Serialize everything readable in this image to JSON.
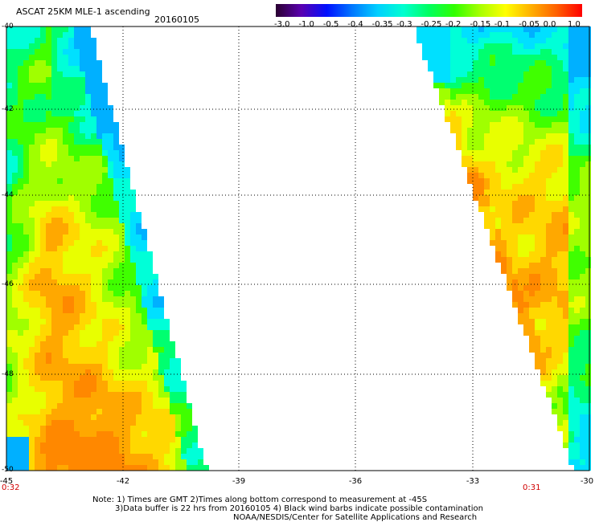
{
  "header": {
    "title": "ASCAT 25KM MLE-1 ascending",
    "date": "20160105"
  },
  "colorbar": {
    "labels": [
      "-3.0",
      "-1.0",
      "-0.5",
      "-0.4",
      "-0.35",
      "-0.3",
      "-0.25",
      "-0.2",
      "-0.15",
      "-0.1",
      "-0.05",
      "0.0",
      "1.0"
    ],
    "colors": [
      "#2a0030",
      "#5a00b0",
      "#0010ff",
      "#0078ff",
      "#00d0ff",
      "#00ffd0",
      "#00ff60",
      "#30ff00",
      "#a8ff00",
      "#ffff00",
      "#ffb000",
      "#ff6000",
      "#ff0000"
    ]
  },
  "axes": {
    "lat_labels": [
      "-40",
      "-42",
      "-44",
      "-46",
      "-48",
      "-50"
    ],
    "lon_labels": [
      "-45",
      "-42",
      "-39",
      "-36",
      "-33",
      "-30"
    ]
  },
  "pass_times": {
    "left": "0:32",
    "right": "0:31"
  },
  "notes": {
    "line1": "Note: 1) Times are GMT 2)Times along bottom correspond to measurement at -45S",
    "line2": "3)Data buffer is 22 hrs from 20160105 4) Black wind barbs indicate possible contamination",
    "line3": "NOAA/NESDIS/Center for Satellite Applications and Research"
  }
}
